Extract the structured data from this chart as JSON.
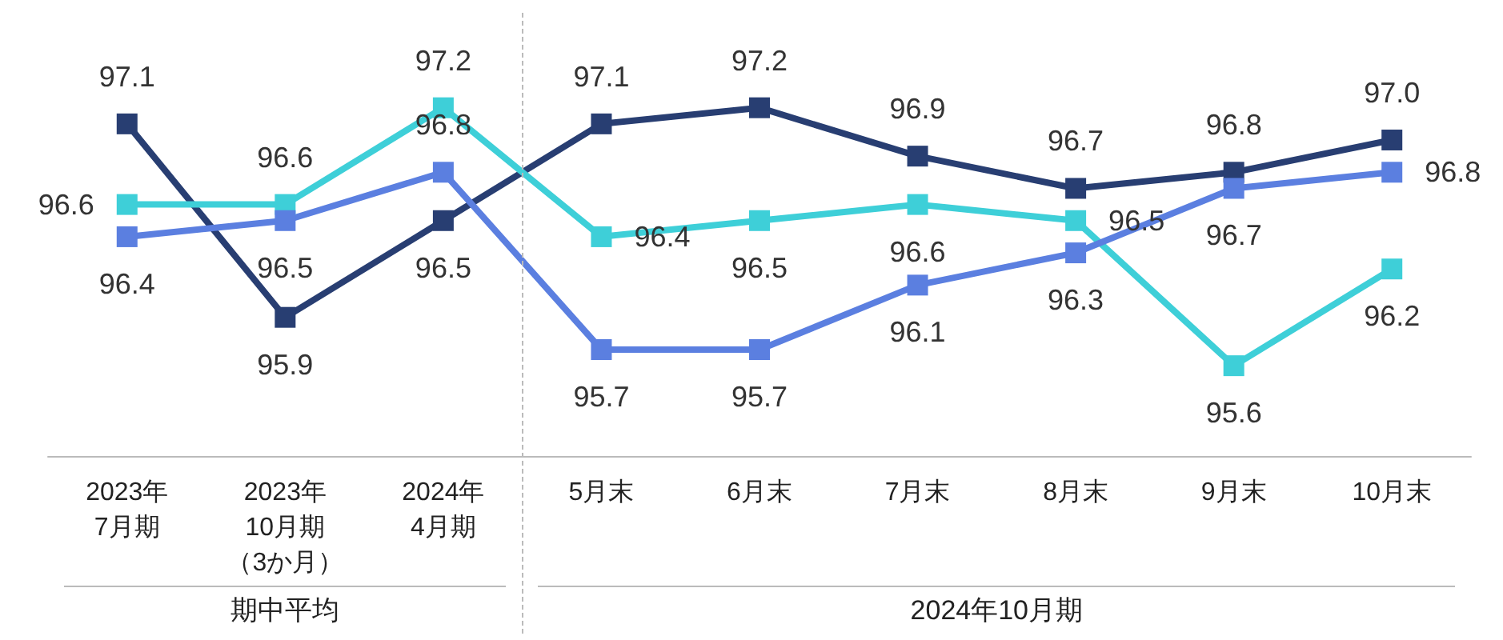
{
  "chart_data": {
    "type": "line",
    "categories": [
      "2023年7月期",
      "2023年10月期（3か月）",
      "2024年4月期",
      "5月末",
      "6月末",
      "7月末",
      "8月末",
      "9月末",
      "10月末"
    ],
    "series": [
      {
        "color": "#283e72",
        "values": [
          97.1,
          95.9,
          96.5,
          97.1,
          97.2,
          96.9,
          96.7,
          96.8,
          97.0
        ],
        "value_labels": [
          "97.1",
          "95.9",
          "96.5",
          "97.1",
          "97.2",
          "96.9",
          "96.7",
          "96.8",
          "97.0"
        ]
      },
      {
        "color": "#3ecfd8",
        "values": [
          96.6,
          96.6,
          97.2,
          96.4,
          96.5,
          96.6,
          96.5,
          95.6,
          96.2
        ],
        "value_labels": [
          "96.6",
          "96.6",
          "97.2",
          "96.4",
          "96.5",
          "96.6",
          "96.5",
          "95.6",
          "96.2"
        ]
      },
      {
        "color": "#5b7fe0",
        "values": [
          96.4,
          96.5,
          96.8,
          95.7,
          95.7,
          96.1,
          96.3,
          96.7,
          96.8
        ],
        "value_labels": [
          "96.4",
          "96.5",
          "96.8",
          "95.7",
          "95.7",
          "96.1",
          "96.3",
          "96.7",
          "96.8"
        ]
      }
    ],
    "tick_labels": "x",
    "marker": "square",
    "line_style": "solid",
    "annotations": [
      "期中平均",
      "2024年10月期"
    ]
  }
}
